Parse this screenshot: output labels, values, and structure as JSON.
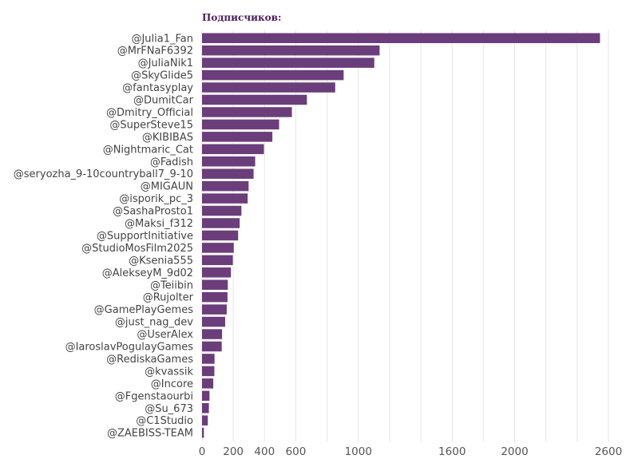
{
  "chart_data": {
    "type": "bar",
    "orientation": "horizontal",
    "title": "Подписчиков:",
    "xlabel": "",
    "ylabel": "",
    "xlim": [
      0,
      2600
    ],
    "xticks": [
      0,
      200,
      400,
      600,
      1000,
      1600,
      2000,
      2600
    ],
    "grid": true,
    "bar_color": "#6b3d7b",
    "categories": [
      "@Julia1_Fan",
      "@MrFNaF6392",
      "@JuliaNik1",
      "@SkyGlide5",
      "@fantasyplay",
      "@DumitCar",
      "@Dmitry_Official",
      "@SuperSteve15",
      "@KIBIBAS",
      "@Nightmaric_Cat",
      "@Fadish",
      "@seryozha_9-10countryball7_9-10",
      "@MIGAUN",
      "@isporik_pc_3",
      "@SashaProsto1",
      "@Maksi_f312",
      "@SupportInitiative",
      "@StudioMosFilm2025",
      "@Ksenia555",
      "@AlekseyM_9d02",
      "@Teiibin",
      "@Rujolter",
      "@GamePlayGemes",
      "@just_nag_dev",
      "@UserAlex",
      "@IaroslavPogulayGames",
      "@RediskaGames",
      "@kvassik",
      "@Incore",
      "@Fgenstaourbi",
      "@Su_673",
      "@C1Studio",
      "@ZAEBISS-TEAM"
    ],
    "values": [
      2546,
      1136,
      1102,
      906,
      852,
      671,
      575,
      493,
      450,
      396,
      340,
      330,
      298,
      292,
      252,
      241,
      231,
      203,
      197,
      185,
      165,
      163,
      158,
      148,
      128,
      126,
      80,
      79,
      72,
      48,
      44,
      37,
      12
    ]
  }
}
